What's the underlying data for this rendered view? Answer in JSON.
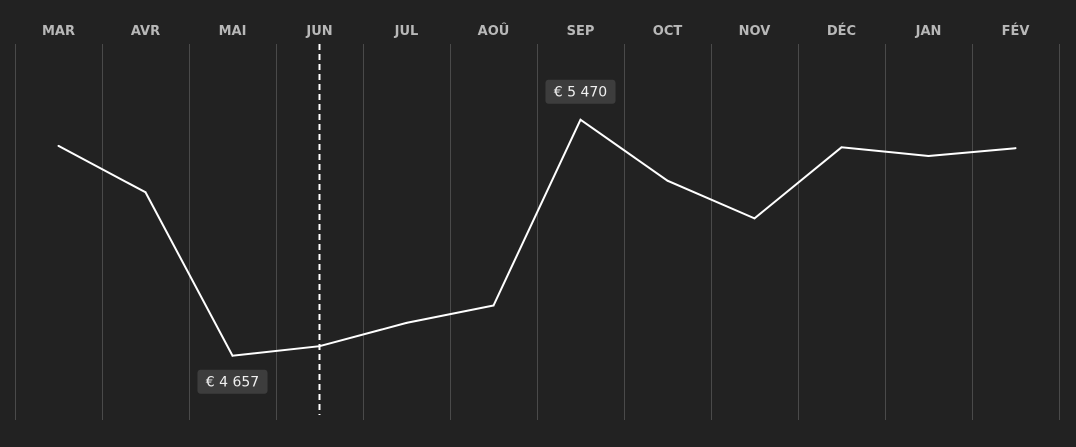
{
  "chart_data": {
    "type": "line",
    "categories": [
      "MAR",
      "AVR",
      "MAI",
      "JUN",
      "JUL",
      "AOÛ",
      "SEP",
      "OCT",
      "NOV",
      "DÉC",
      "JAN",
      "FÉV"
    ],
    "values": [
      5380,
      5220,
      4657,
      4690,
      4770,
      4830,
      5470,
      5260,
      5130,
      5375,
      5345,
      5372
    ],
    "ylim": [
      4570,
      5600
    ],
    "grid": true,
    "highlight_category": "JUN",
    "annotations": [
      {
        "category": "MAI",
        "text": "€ 4 657",
        "position": "below"
      },
      {
        "category": "SEP",
        "text": "€ 5 470",
        "position": "above"
      }
    ],
    "colors": {
      "background": "#222222",
      "line": "#ffffff",
      "grid": "#4a4a4a",
      "label": "#b8b8b8",
      "callout": "#3d3d3d"
    }
  }
}
